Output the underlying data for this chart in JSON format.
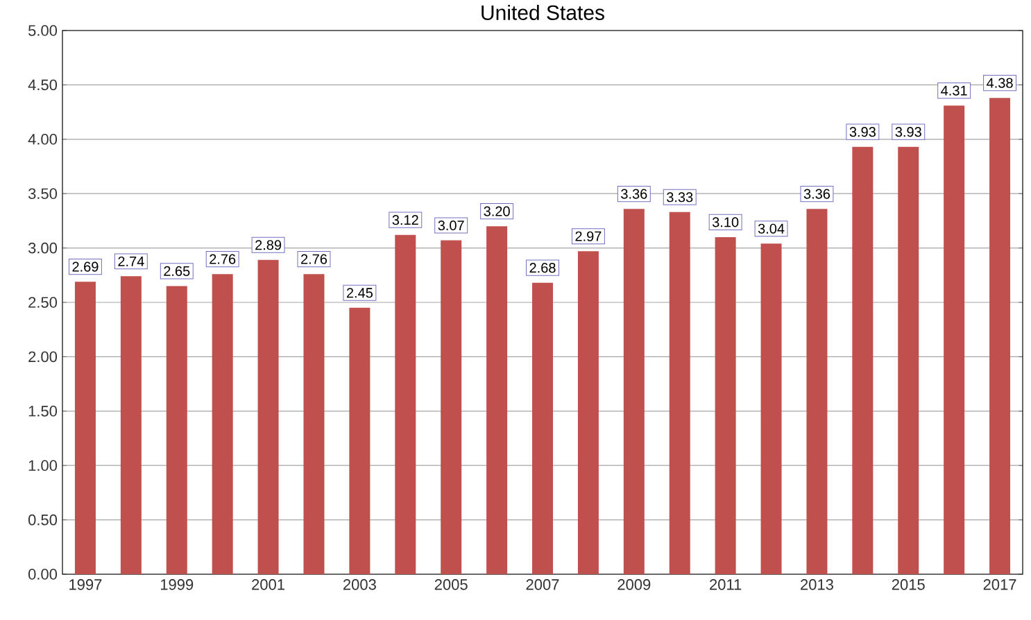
{
  "chart_data": {
    "type": "bar",
    "title": "United States",
    "categories": [
      "1997",
      null,
      "1999",
      null,
      "2001",
      null,
      "2003",
      null,
      "2005",
      null,
      "2007",
      null,
      "2009",
      null,
      "2011",
      null,
      "2013",
      null,
      "2015",
      null,
      "2017"
    ],
    "values": [
      2.69,
      2.74,
      2.65,
      2.76,
      2.89,
      2.76,
      2.45,
      3.12,
      3.07,
      3.2,
      2.68,
      2.97,
      3.36,
      3.33,
      3.1,
      3.04,
      3.36,
      3.93,
      3.93,
      4.31,
      4.38
    ],
    "value_labels": [
      "2.69",
      "2.74",
      "2.65",
      "2.76",
      "2.89",
      "2.76",
      "2.45",
      "3.12",
      "3.07",
      "3.20",
      "2.68",
      "2.97",
      "3.36",
      "3.33",
      "3.10",
      "3.04",
      "3.36",
      "3.93",
      "3.93",
      "4.31",
      "4.38"
    ],
    "color": "#c0504d",
    "ylim": [
      0,
      5
    ],
    "yticks": [
      {
        "value": 0,
        "label": "0.00"
      },
      {
        "value": 0.5,
        "label": "0.50"
      },
      {
        "value": 1,
        "label": "1.00"
      },
      {
        "value": 1.5,
        "label": "1.50"
      },
      {
        "value": 2,
        "label": "2.00"
      },
      {
        "value": 2.5,
        "label": "2.50"
      },
      {
        "value": 3,
        "label": "3.00"
      },
      {
        "value": 3.5,
        "label": "3.50"
      },
      {
        "value": 4,
        "label": "4.00"
      },
      {
        "value": 4.5,
        "label": "4.50"
      },
      {
        "value": 5,
        "label": "5.00"
      }
    ],
    "grid": "y"
  }
}
